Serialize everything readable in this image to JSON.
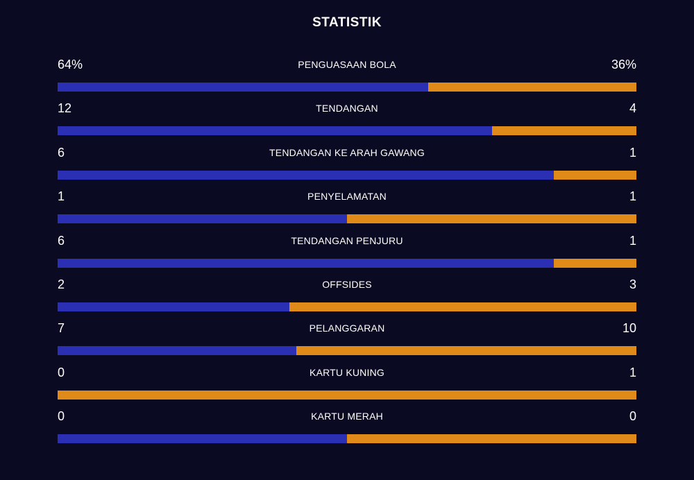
{
  "title": "STATISTIK",
  "colors": {
    "background": "#0a0a23",
    "home": "#2b2fb3",
    "away": "#e08a1a"
  },
  "stats": [
    {
      "label": "PENGUASAAN BOLA",
      "home": "64%",
      "away": "36%",
      "home_share": 0.64
    },
    {
      "label": "TENDANGAN",
      "home": "12",
      "away": "4",
      "home_share": 0.75
    },
    {
      "label": "TENDANGAN KE ARAH GAWANG",
      "home": "6",
      "away": "1",
      "home_share": 0.857
    },
    {
      "label": "PENYELAMATAN",
      "home": "1",
      "away": "1",
      "home_share": 0.5
    },
    {
      "label": "TENDANGAN PENJURU",
      "home": "6",
      "away": "1",
      "home_share": 0.857
    },
    {
      "label": "OFFSIDES",
      "home": "2",
      "away": "3",
      "home_share": 0.4
    },
    {
      "label": "PELANGGARAN",
      "home": "7",
      "away": "10",
      "home_share": 0.412
    },
    {
      "label": "KARTU KUNING",
      "home": "0",
      "away": "1",
      "home_share": 0
    },
    {
      "label": "KARTU MERAH",
      "home": "0",
      "away": "0",
      "home_share": 0.5
    }
  ]
}
